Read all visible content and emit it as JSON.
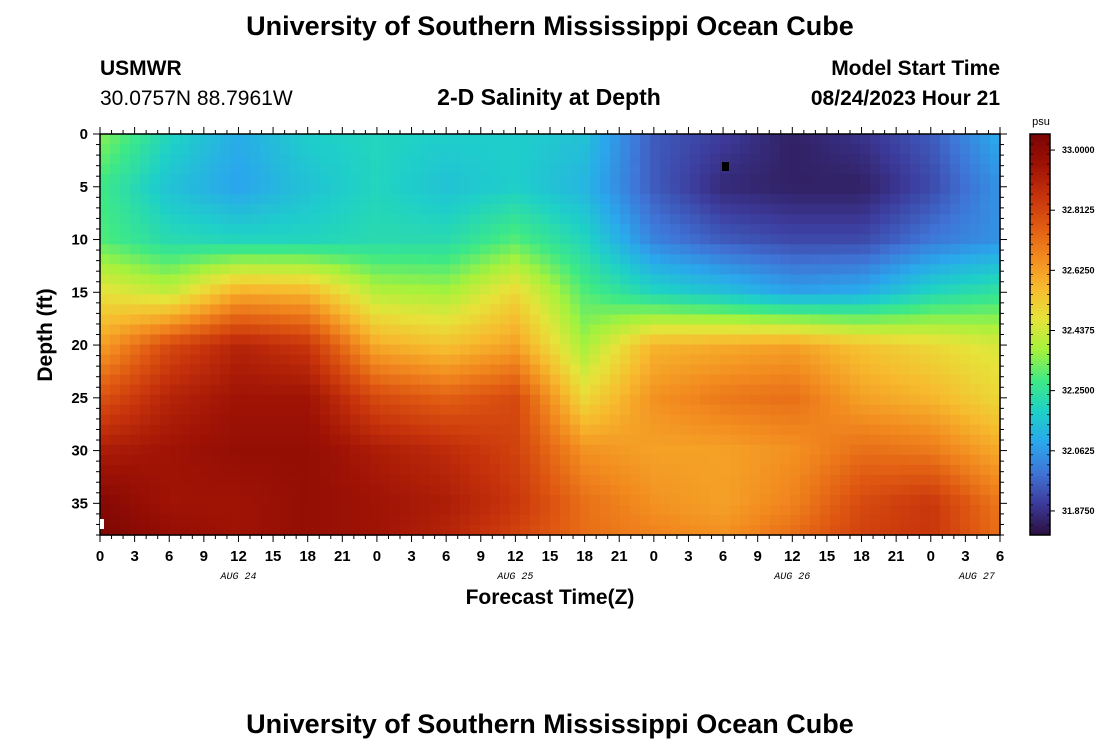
{
  "page": {
    "title": "University of Southern Mississippi Ocean Cube",
    "footer_title": "University of Southern Mississippi Ocean Cube"
  },
  "header": {
    "station": "USMWR",
    "coords": "30.0757N  88.7961W",
    "plot_title": "2-D Salinity at Depth",
    "model_label": "Model Start Time",
    "model_time": "08/24/2023 Hour 21"
  },
  "chart_data": {
    "type": "heatmap",
    "title": "2-D Salinity at Depth",
    "xlabel": "Forecast Time(Z)",
    "ylabel": "Depth (ft)",
    "xlim": [
      0,
      78
    ],
    "ylim": [
      0,
      38
    ],
    "x_ticks": [
      0,
      3,
      6,
      9,
      12,
      15,
      18,
      21,
      24,
      27,
      30,
      33,
      36,
      39,
      42,
      45,
      48,
      51,
      54,
      57,
      60,
      63,
      66,
      69,
      72,
      75,
      78
    ],
    "x_tick_labels": [
      "0",
      "3",
      "6",
      "9",
      "12",
      "15",
      "18",
      "21",
      "0",
      "3",
      "6",
      "9",
      "12",
      "15",
      "18",
      "21",
      "0",
      "3",
      "6",
      "9",
      "12",
      "15",
      "18",
      "21",
      "0",
      "3",
      "6"
    ],
    "y_ticks": [
      0,
      5,
      10,
      15,
      20,
      25,
      30,
      35
    ],
    "y_tick_labels": [
      "0",
      "5",
      "10",
      "15",
      "20",
      "25",
      "30",
      "35"
    ],
    "date_labels": [
      {
        "label": "AUG 24",
        "x": 12
      },
      {
        "label": "AUG 25",
        "x": 36
      },
      {
        "label": "AUG 26",
        "x": 60
      },
      {
        "label": "AUG 27",
        "x": 76
      }
    ],
    "colorbar": {
      "unit": "psu",
      "min": 31.8,
      "max": 33.05,
      "ticks": [
        33.0,
        32.8125,
        32.625,
        32.4375,
        32.25,
        32.0625,
        31.875
      ],
      "tick_labels": [
        "33.0000",
        "32.8125",
        "32.6250",
        "32.4375",
        "32.2500",
        "32.0625",
        "31.8750"
      ],
      "colors": [
        "#2a0f3e",
        "#3c3a9a",
        "#3f74d6",
        "#2aa7ec",
        "#1ed0c8",
        "#3ee985",
        "#a5f23c",
        "#e6e33a",
        "#f7bb2e",
        "#f28a1f",
        "#e05a12",
        "#c6320b",
        "#9e1205",
        "#7a0403"
      ]
    },
    "salinity_psu": {
      "description": "Estimated salinity field (psu), grid depth rows (ft) x forecast hour columns",
      "depth_ft": [
        0,
        5,
        10,
        15,
        20,
        25,
        30,
        35,
        38
      ],
      "hour": [
        0,
        6,
        12,
        18,
        24,
        30,
        36,
        42,
        48,
        54,
        60,
        66,
        72,
        78
      ],
      "values": [
        [
          32.35,
          32.2,
          32.1,
          32.18,
          32.2,
          32.18,
          32.18,
          32.15,
          31.95,
          31.9,
          31.84,
          31.88,
          31.95,
          32.1
        ],
        [
          32.28,
          32.15,
          32.08,
          32.15,
          32.2,
          32.15,
          32.18,
          32.12,
          31.95,
          31.86,
          31.84,
          31.84,
          31.92,
          32.05
        ],
        [
          32.3,
          32.22,
          32.2,
          32.2,
          32.22,
          32.22,
          32.3,
          32.2,
          32.02,
          31.95,
          31.92,
          31.92,
          32.0,
          32.05
        ],
        [
          32.48,
          32.42,
          32.6,
          32.58,
          32.4,
          32.38,
          32.5,
          32.3,
          32.2,
          32.15,
          32.08,
          32.1,
          32.2,
          32.25
        ],
        [
          32.62,
          32.8,
          32.9,
          32.85,
          32.6,
          32.55,
          32.62,
          32.38,
          32.58,
          32.6,
          32.62,
          32.55,
          32.5,
          32.45
        ],
        [
          32.78,
          32.9,
          32.95,
          32.95,
          32.8,
          32.75,
          32.8,
          32.5,
          32.65,
          32.7,
          32.72,
          32.62,
          32.58,
          32.5
        ],
        [
          32.92,
          32.95,
          32.98,
          32.98,
          32.92,
          32.88,
          32.82,
          32.65,
          32.62,
          32.62,
          32.65,
          32.72,
          32.7,
          32.6
        ],
        [
          33.02,
          32.95,
          32.95,
          32.98,
          32.95,
          32.92,
          32.85,
          32.72,
          32.65,
          32.62,
          32.68,
          32.8,
          32.85,
          32.7
        ],
        [
          33.04,
          32.98,
          32.95,
          32.98,
          32.95,
          32.9,
          32.82,
          32.72,
          32.68,
          32.65,
          32.72,
          32.82,
          32.85,
          32.72
        ]
      ]
    }
  }
}
